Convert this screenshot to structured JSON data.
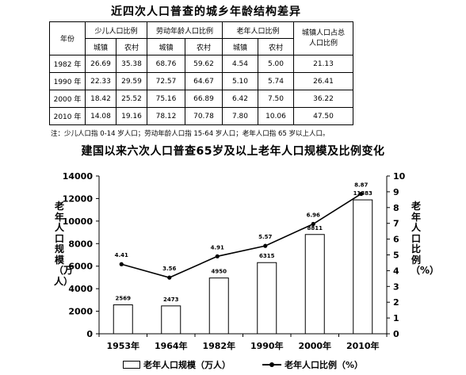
{
  "table": {
    "title": "近四次人口普查的城乡年龄结构差异",
    "headers": {
      "year": "年份",
      "child": "少儿人口比例",
      "working": "劳动年龄人口比例",
      "elderly": "老年人口比例",
      "urban_share": "城镇人口占总人口比例",
      "urban": "城镇",
      "rural": "农村"
    },
    "rows": [
      {
        "year": "1982 年",
        "values": [
          "26.69",
          "35.38",
          "68.76",
          "59.62",
          "4.54",
          "5.00",
          "21.13"
        ]
      },
      {
        "year": "1990 年",
        "values": [
          "22.33",
          "29.59",
          "72.57",
          "64.67",
          "5.10",
          "5.74",
          "26.41"
        ]
      },
      {
        "year": "2000 年",
        "values": [
          "18.42",
          "25.52",
          "75.16",
          "66.89",
          "6.42",
          "7.50",
          "36.22"
        ]
      },
      {
        "year": "2010 年",
        "values": [
          "14.08",
          "19.16",
          "78.12",
          "70.78",
          "7.80",
          "10.06",
          "47.50"
        ]
      }
    ],
    "note": "注：少儿人口指 0-14 岁人口；劳动年龄人口指 15-64 岁人口；老年人口指 65 岁以上人口。"
  },
  "chart_data": {
    "type": "bar",
    "title": "建国以来六次人口普查65岁及以上老年人口规模及比例变化",
    "categories": [
      "1953年",
      "1964年",
      "1982年",
      "1990年",
      "2000年",
      "2010年"
    ],
    "series": [
      {
        "name": "老年人口规模（万人）",
        "type": "bar",
        "axis": "left",
        "values": [
          2569,
          2473,
          4950,
          6315,
          8811,
          11883
        ],
        "labels": [
          "2569",
          "2473",
          "4950",
          "6315",
          "8811",
          "11883"
        ]
      },
      {
        "name": "老年人口比例（%）",
        "type": "line",
        "axis": "right",
        "values": [
          4.41,
          3.56,
          4.91,
          5.57,
          6.96,
          8.87
        ],
        "labels": [
          "4.41",
          "3.56",
          "4.91",
          "5.57",
          "6.96",
          "8.87"
        ]
      }
    ],
    "ylabel": "老年人口规模（万人）",
    "y2label": "老年人口比例（%）",
    "ylim": [
      0,
      14000
    ],
    "y2lim": [
      0,
      10
    ],
    "yticks": [
      "0",
      "2000",
      "4000",
      "6000",
      "8000",
      "10000",
      "12000",
      "14000"
    ],
    "y2ticks": [
      "0",
      "1",
      "2",
      "3",
      "4",
      "5",
      "6",
      "7",
      "8",
      "9",
      "10"
    ],
    "grid": false,
    "legend": "bottom"
  }
}
